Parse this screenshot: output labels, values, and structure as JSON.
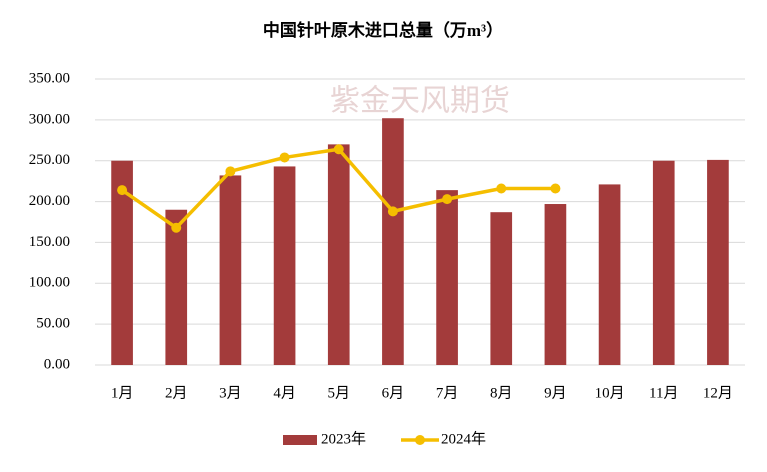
{
  "chart_data": {
    "type": "bar-line",
    "title": "中国针叶原木进口总量（万m³）",
    "watermark": "紫金天风期货",
    "categories": [
      "1月",
      "2月",
      "3月",
      "4月",
      "5月",
      "6月",
      "7月",
      "8月",
      "9月",
      "10月",
      "11月",
      "12月"
    ],
    "series": [
      {
        "name": "2023年",
        "type": "bar",
        "color": "#A33B3B",
        "values": [
          250,
          190,
          232,
          243,
          270,
          302,
          214,
          187,
          197,
          221,
          250,
          251
        ]
      },
      {
        "name": "2024年",
        "type": "line",
        "color": "#F5BE00",
        "values": [
          214,
          168,
          237,
          254,
          264,
          188,
          203,
          216,
          216,
          null,
          null,
          null
        ]
      }
    ],
    "ylim": [
      0,
      350
    ],
    "yticks": [
      {
        "value": 0,
        "label": "0.00"
      },
      {
        "value": 50,
        "label": "50.00"
      },
      {
        "value": 100,
        "label": "100.00"
      },
      {
        "value": 150,
        "label": "150.00"
      },
      {
        "value": 200,
        "label": "200.00"
      },
      {
        "value": 250,
        "label": "250.00"
      },
      {
        "value": 300,
        "label": "300.00"
      },
      {
        "value": 350,
        "label": "350.00"
      }
    ],
    "grid": true,
    "legend": "bottom"
  }
}
